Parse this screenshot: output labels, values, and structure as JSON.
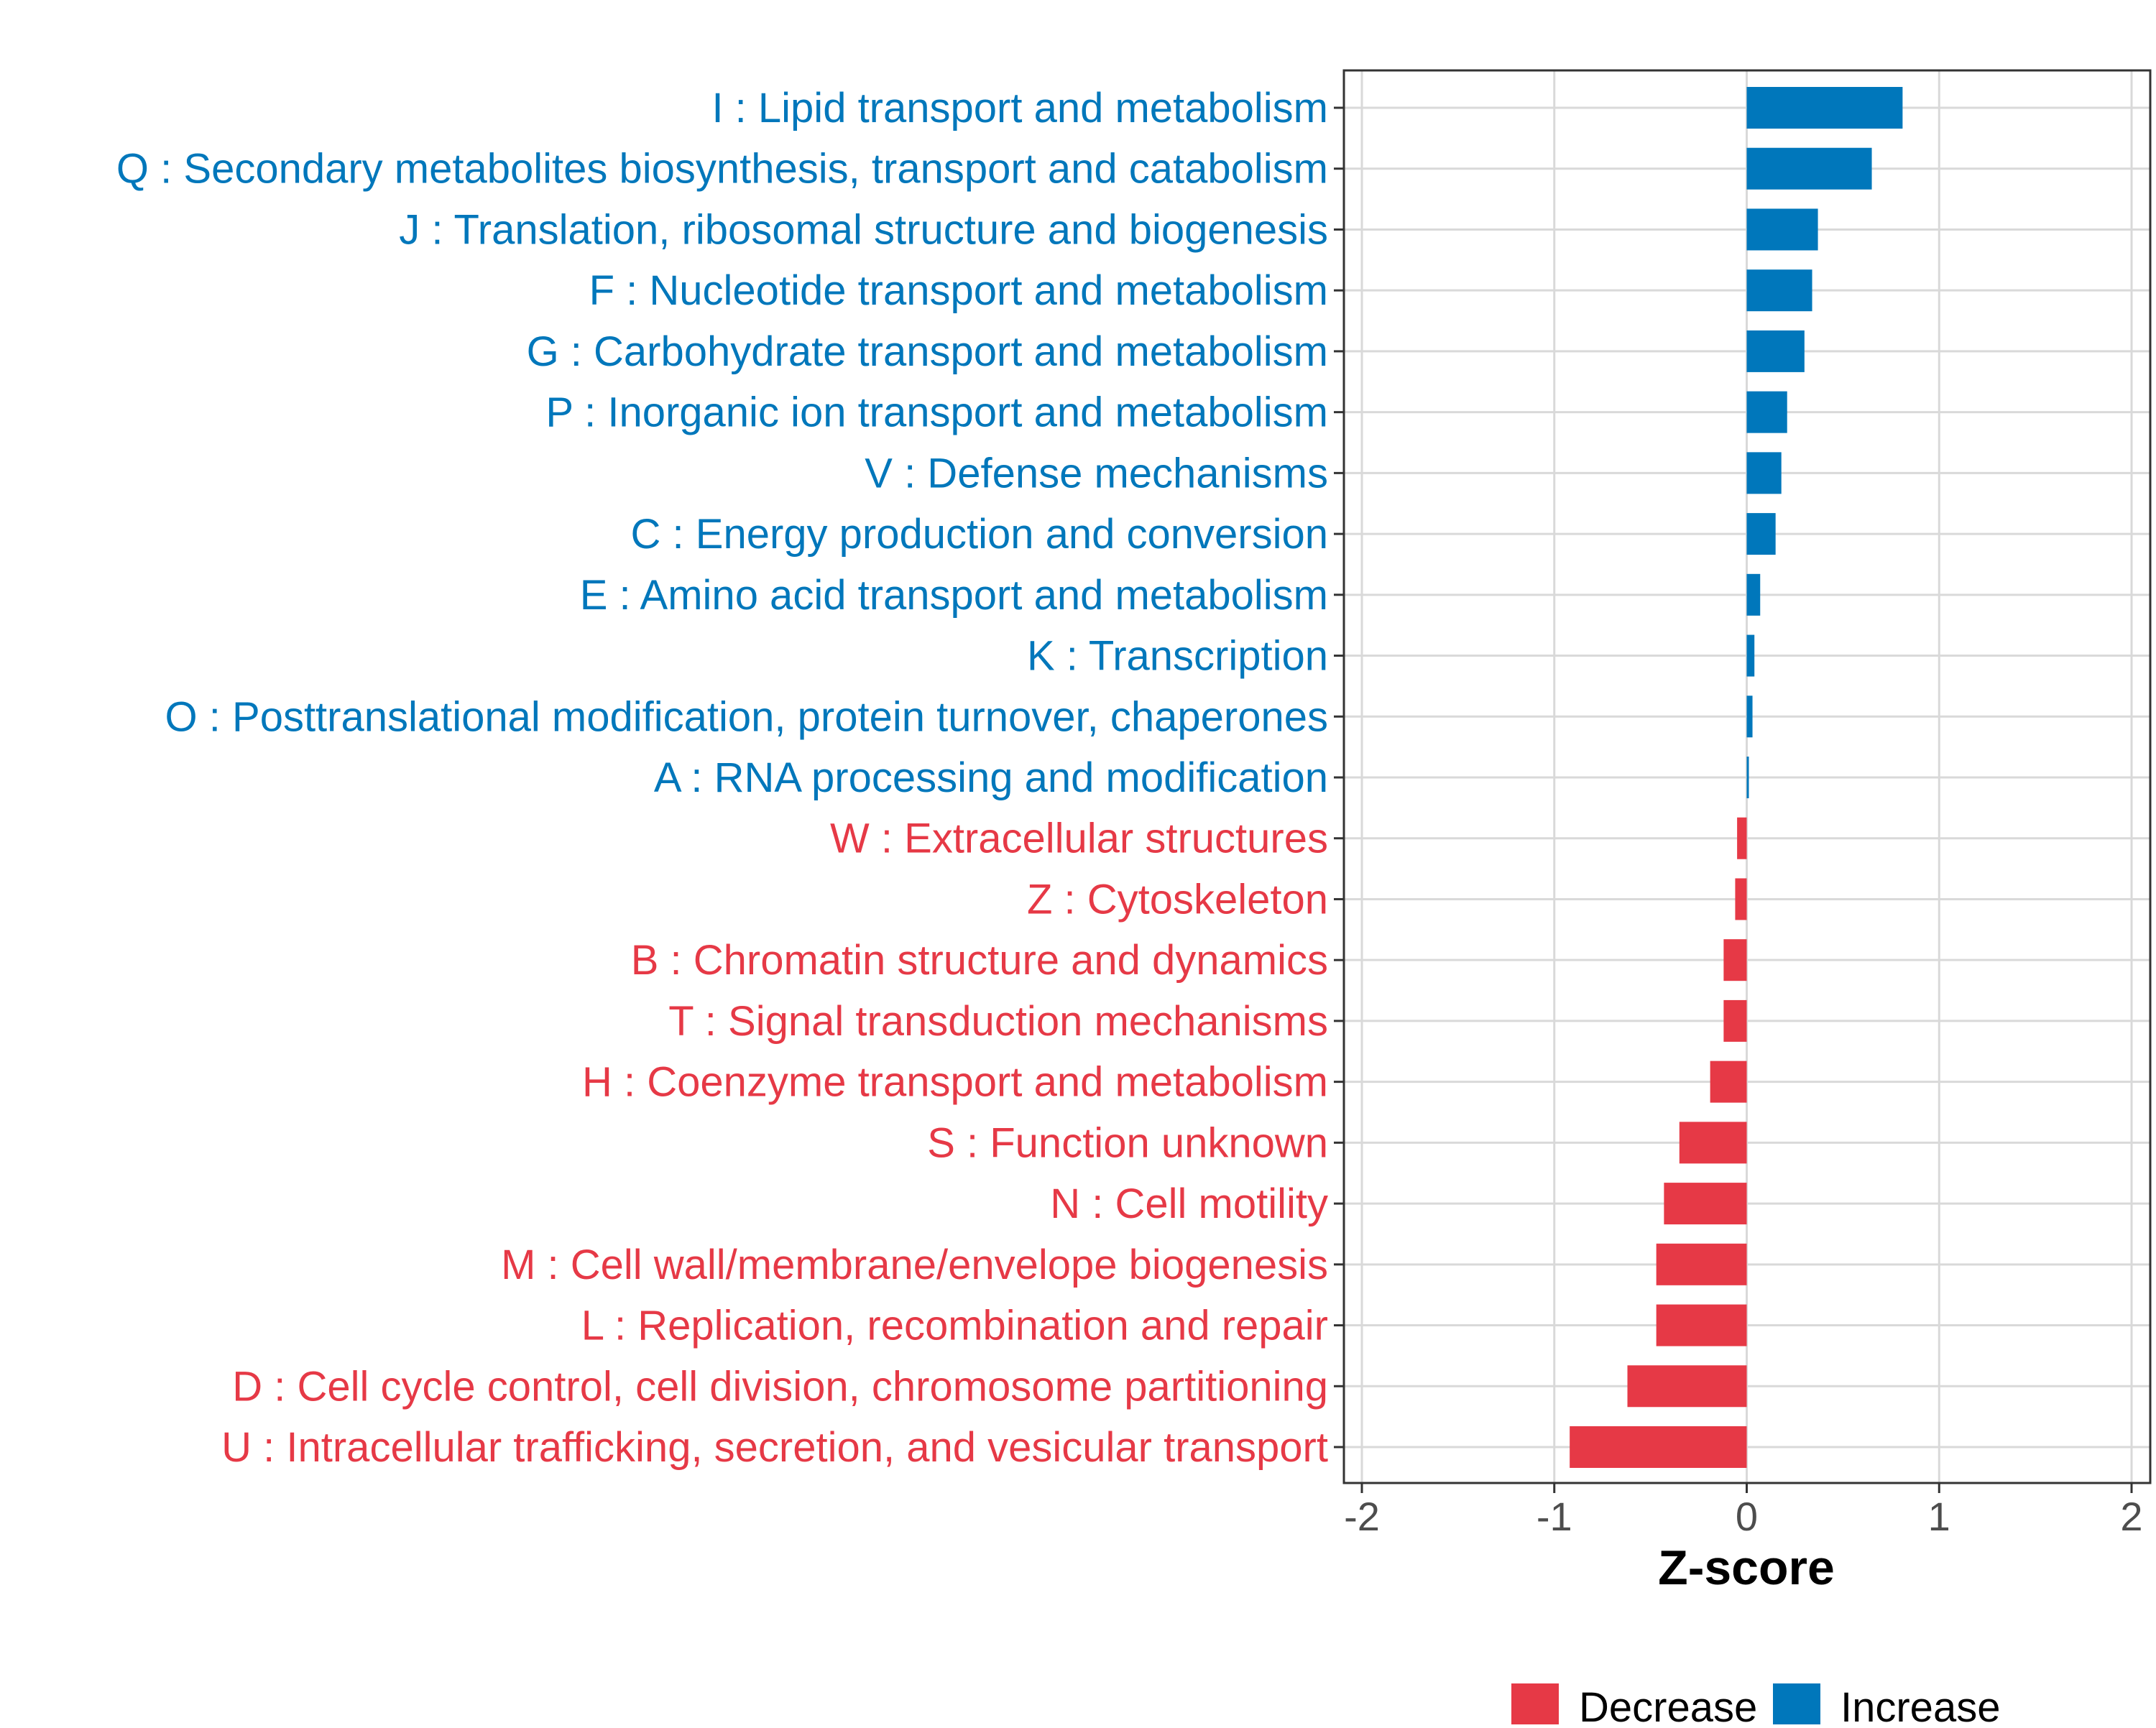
{
  "colors": {
    "increase": "#0077bb",
    "decrease": "#e63946",
    "grid": "#d9d9d9",
    "panel_border": "#333333",
    "tick_text": "#4d4d4d"
  },
  "chart_data": {
    "type": "bar",
    "orientation": "horizontal",
    "title": "",
    "xlabel": "Z-score",
    "ylabel": "",
    "xlim": [
      -2,
      2
    ],
    "xticks": [
      -2,
      -1,
      0,
      1,
      2
    ],
    "xtick_labels": [
      "-2",
      "-1",
      "0",
      "1",
      "2"
    ],
    "grid": true,
    "legend_position": "bottom",
    "legend": [
      {
        "key": "decrease",
        "label": "Decrease"
      },
      {
        "key": "increase",
        "label": "Increase"
      }
    ],
    "categories": [
      "I : Lipid transport and metabolism",
      "Q : Secondary metabolites biosynthesis, transport and catabolism",
      "J : Translation, ribosomal structure and biogenesis",
      "F : Nucleotide transport and metabolism",
      "G : Carbohydrate transport and metabolism",
      "P : Inorganic ion transport and metabolism",
      "V : Defense mechanisms",
      "C : Energy production and conversion",
      "E : Amino acid transport and metabolism",
      "K : Transcription",
      "O : Posttranslational modification, protein turnover, chaperones",
      "A : RNA processing and modification",
      "W : Extracellular structures",
      "Z : Cytoskeleton",
      "B : Chromatin structure and dynamics",
      "T : Signal transduction mechanisms",
      "H : Coenzyme transport and metabolism",
      "S : Function unknown",
      "N : Cell motility",
      "M : Cell wall/membrane/envelope biogenesis",
      "L : Replication, recombination and repair",
      "D : Cell cycle control, cell division, chromosome partitioning",
      "U : Intracellular trafficking, secretion, and vesicular transport"
    ],
    "values": [
      0.81,
      0.65,
      0.37,
      0.34,
      0.3,
      0.21,
      0.18,
      0.15,
      0.07,
      0.04,
      0.03,
      0.01,
      -0.05,
      -0.06,
      -0.12,
      -0.12,
      -0.19,
      -0.35,
      -0.43,
      -0.47,
      -0.47,
      -0.62,
      -0.92
    ],
    "direction": [
      "increase",
      "increase",
      "increase",
      "increase",
      "increase",
      "increase",
      "increase",
      "increase",
      "increase",
      "increase",
      "increase",
      "increase",
      "decrease",
      "decrease",
      "decrease",
      "decrease",
      "decrease",
      "decrease",
      "decrease",
      "decrease",
      "decrease",
      "decrease",
      "decrease"
    ]
  }
}
